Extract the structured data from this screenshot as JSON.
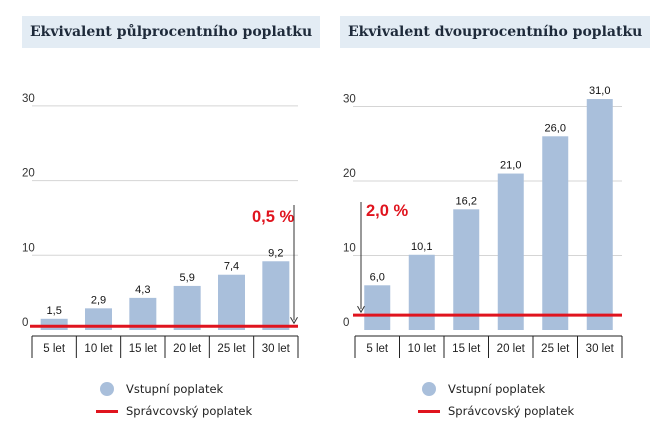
{
  "chart_data": [
    {
      "type": "bar",
      "title": "Ekvivalent půlprocentního poplatku",
      "categories": [
        "5 let",
        "10 let",
        "15 let",
        "20 let",
        "25 let",
        "30 let"
      ],
      "series": [
        {
          "name": "Vstupní poplatek",
          "values": [
            1.5,
            2.9,
            4.3,
            5.9,
            7.4,
            9.2
          ]
        }
      ],
      "value_labels": [
        "1,5",
        "2,9",
        "4,3",
        "5,9",
        "7,4",
        "9,2"
      ],
      "reference_line": {
        "name": "Správcovský poplatek",
        "value": 0.5,
        "label": "0,5 %"
      },
      "yticks": [
        0,
        10,
        20,
        30
      ],
      "ylim": [
        0,
        33
      ],
      "bar_color": "#a9bfdb",
      "line_color": "#e0141e"
    },
    {
      "type": "bar",
      "title": "Ekvivalent dvouprocentního poplatku",
      "categories": [
        "5 let",
        "10 let",
        "15 let",
        "20 let",
        "25 let",
        "30 let"
      ],
      "series": [
        {
          "name": "Vstupní poplatek",
          "values": [
            6.0,
            10.1,
            16.2,
            21.0,
            26.0,
            31.0
          ]
        }
      ],
      "value_labels": [
        "6,0",
        "10,1",
        "16,2",
        "21,0",
        "26,0",
        "31,0"
      ],
      "reference_line": {
        "name": "Správcovský poplatek",
        "value": 2.0,
        "label": "2,0 %"
      },
      "yticks": [
        0,
        10,
        20,
        30
      ],
      "ylim": [
        0,
        33
      ],
      "bar_color": "#a9bfdb",
      "line_color": "#e0141e"
    }
  ],
  "legend": {
    "bar_label": "Vstupní poplatek",
    "line_label": "Správcovský poplatek"
  }
}
